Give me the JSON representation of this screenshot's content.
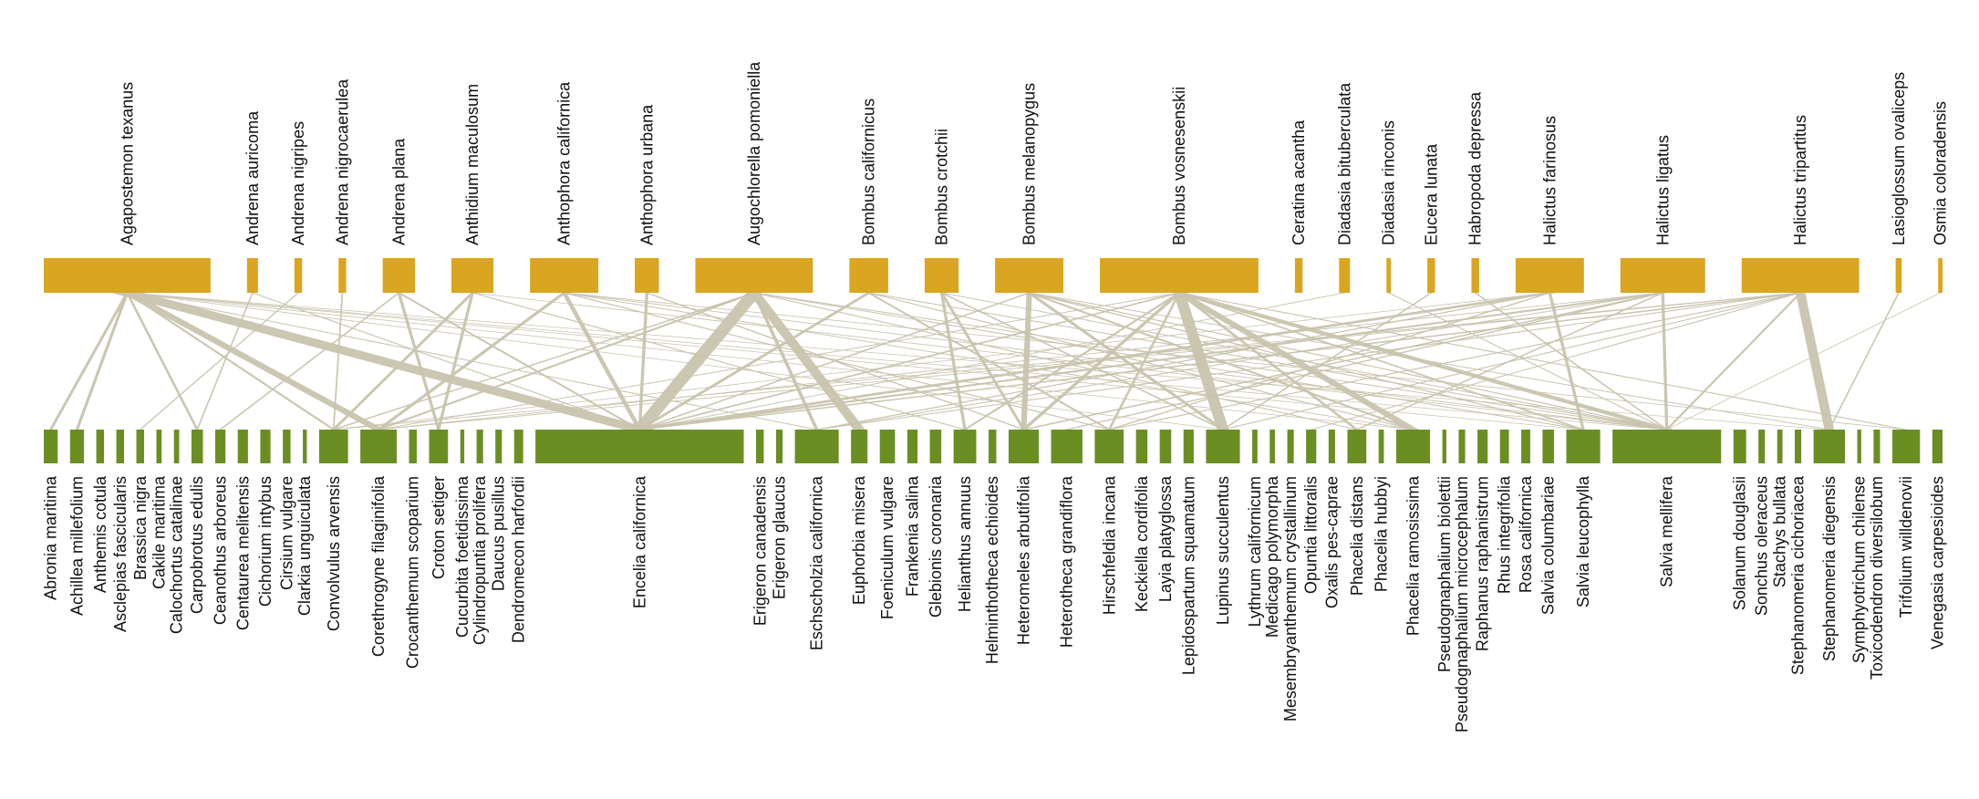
{
  "colors": {
    "pollinator": "#DAA520",
    "plant": "#6B8E23",
    "link": "#C9C4AE"
  },
  "pollinators": [
    {
      "name": "Agapostemon texanus",
      "w": 10
    },
    {
      "name": "Andrena auricoma",
      "w": 0.5
    },
    {
      "name": "Andrena nigripes",
      "w": 0.3
    },
    {
      "name": "Andrena nigrocaerulea",
      "w": 0.3
    },
    {
      "name": "Andrena plana",
      "w": 1.8
    },
    {
      "name": "Anthidium maculosum",
      "w": 2.4
    },
    {
      "name": "Anthophora californica",
      "w": 4
    },
    {
      "name": "Anthophora urbana",
      "w": 1.3
    },
    {
      "name": "Augochlorella pomoniella",
      "w": 7
    },
    {
      "name": "Bombus californicus",
      "w": 2.2
    },
    {
      "name": "Bombus crotchii",
      "w": 1.9
    },
    {
      "name": "Bombus melanopygus",
      "w": 4
    },
    {
      "name": "Bombus vosnesenskii",
      "w": 9.5
    },
    {
      "name": "Ceratina acantha",
      "w": 0.3
    },
    {
      "name": "Diadasia bituberculata",
      "w": 0.5
    },
    {
      "name": "Diadasia rinconis",
      "w": 0.1
    },
    {
      "name": "Eucera lunata",
      "w": 0.3
    },
    {
      "name": "Habropoda depressa",
      "w": 0.3
    },
    {
      "name": "Halictus farinosus",
      "w": 4
    },
    {
      "name": "Halictus ligatus",
      "w": 5
    },
    {
      "name": "Halictus tripartitus",
      "w": 7
    },
    {
      "name": "Lasioglossum ovaliceps",
      "w": 0.2
    },
    {
      "name": "Osmia coloradensis",
      "w": 0.1
    }
  ],
  "plants": [
    {
      "name": "Abronia maritima",
      "w": 0.9
    },
    {
      "name": "Achillea millefolium",
      "w": 0.9
    },
    {
      "name": "Anthemis cotula",
      "w": 0.4
    },
    {
      "name": "Asclepias fascicularis",
      "w": 0.4
    },
    {
      "name": "Brassica nigra",
      "w": 0.4
    },
    {
      "name": "Cakile maritima",
      "w": 0.2
    },
    {
      "name": "Calochortus catalinae",
      "w": 0.2
    },
    {
      "name": "Carpobrotus edulis",
      "w": 0.7
    },
    {
      "name": "Ceanothus arboreus",
      "w": 0.6
    },
    {
      "name": "Centaurea melitensis",
      "w": 0.6
    },
    {
      "name": "Cichorium intybus",
      "w": 0.6
    },
    {
      "name": "Cirsium vulgare",
      "w": 0.4
    },
    {
      "name": "Clarkia unguiculata",
      "w": 0.1
    },
    {
      "name": "Convolvulus arvensis",
      "w": 2.1
    },
    {
      "name": "Corethrogyne filaginifolia",
      "w": 2.7
    },
    {
      "name": "Crocanthemum scoparium",
      "w": 0.4
    },
    {
      "name": "Croton setiger",
      "w": 1.3
    },
    {
      "name": "Cucurbita foetidissima",
      "w": 0.1
    },
    {
      "name": "Cylindropuntia prolifera",
      "w": 0.3
    },
    {
      "name": "Daucus pusillus",
      "w": 0.3
    },
    {
      "name": "Dendromecon harfordii",
      "w": 0.5
    },
    {
      "name": "Encelia californica",
      "w": 16.5
    },
    {
      "name": "Erigeron canadensis",
      "w": 0.4
    },
    {
      "name": "Erigeron glaucus",
      "w": 0.3
    },
    {
      "name": "Eschscholzia californica",
      "w": 3.3
    },
    {
      "name": "Euphorbia misera",
      "w": 1.1
    },
    {
      "name": "Foeniculum vulgare",
      "w": 1
    },
    {
      "name": "Frankenia salina",
      "w": 0.6
    },
    {
      "name": "Glebionis coronaria",
      "w": 0.7
    },
    {
      "name": "Helianthus annuus",
      "w": 1.6
    },
    {
      "name": "Helminthotheca echioides",
      "w": 0.4
    },
    {
      "name": "Heteromeles arbutifolia",
      "w": 2.2
    },
    {
      "name": "Heterotheca grandiflora",
      "w": 2.3
    },
    {
      "name": "Hirschfeldia incana",
      "w": 2.1
    },
    {
      "name": "Keckiella cordifolia",
      "w": 0.7
    },
    {
      "name": "Layia platyglossa",
      "w": 0.7
    },
    {
      "name": "Lepidospartum squamatum",
      "w": 0.6
    },
    {
      "name": "Lupinus succulentus",
      "w": 2.5
    },
    {
      "name": "Lythrum californicum",
      "w": 0.2
    },
    {
      "name": "Medicago polymorpha",
      "w": 0.2
    },
    {
      "name": "Mesembryanthemum crystallinum",
      "w": 0.3
    },
    {
      "name": "Opuntia littoralis",
      "w": 0.6
    },
    {
      "name": "Oxalis pes-caprae",
      "w": 0.3
    },
    {
      "name": "Phacelia distans",
      "w": 1.3
    },
    {
      "name": "Phacelia hubbyi",
      "w": 0.2
    },
    {
      "name": "Phacelia ramosissima",
      "w": 2.5
    },
    {
      "name": "Pseudognaphalium biolettii",
      "w": 0.1
    },
    {
      "name": "Pseudognaphalium microcephalum",
      "w": 0.3
    },
    {
      "name": "Raphanus raphanistrum",
      "w": 0.6
    },
    {
      "name": "Rhus integrifolia",
      "w": 0.5
    },
    {
      "name": "Rosa californica",
      "w": 0.5
    },
    {
      "name": "Salvia columbariae",
      "w": 0.7
    },
    {
      "name": "Salvia leucophylla",
      "w": 2.5
    },
    {
      "name": "Salvia mellifera",
      "w": 8.5
    },
    {
      "name": "Solanum douglasii",
      "w": 0.8
    },
    {
      "name": "Sonchus oleraceus",
      "w": 0.3
    },
    {
      "name": "Stachys bullata",
      "w": 0.2
    },
    {
      "name": "Stephanomeria cichoriacea",
      "w": 0.3
    },
    {
      "name": "Stephanomeria diegensis",
      "w": 2.3
    },
    {
      "name": "Symphyotrichum chilense",
      "w": 0.1
    },
    {
      "name": "Toxicodendron diversilobum",
      "w": 0.3
    },
    {
      "name": "Trifolium willdenovii",
      "w": 2
    },
    {
      "name": "Venegasia carpesioides",
      "w": 0.6
    }
  ],
  "links": [
    {
      "p": 0,
      "q": 21,
      "w": 6
    },
    {
      "p": 0,
      "q": 14,
      "w": 2.2
    },
    {
      "p": 0,
      "q": 0,
      "w": 0.5
    },
    {
      "p": 0,
      "q": 1,
      "w": 0.5
    },
    {
      "p": 0,
      "q": 7,
      "w": 0.4
    },
    {
      "p": 0,
      "q": 13,
      "w": 0.5
    },
    {
      "p": 0,
      "q": 24,
      "w": 0.4
    },
    {
      "p": 0,
      "q": 37,
      "w": 0.3
    },
    {
      "p": 0,
      "q": 45,
      "w": 0.3
    },
    {
      "p": 0,
      "q": 52,
      "w": 0.3
    },
    {
      "p": 0,
      "q": 53,
      "w": 0.3
    },
    {
      "p": 0,
      "q": 58,
      "w": 0.3
    },
    {
      "p": 1,
      "q": 21,
      "w": 0.3
    },
    {
      "p": 1,
      "q": 7,
      "w": 0.2
    },
    {
      "p": 2,
      "q": 4,
      "w": 0.2
    },
    {
      "p": 3,
      "q": 13,
      "w": 0.2
    },
    {
      "p": 4,
      "q": 21,
      "w": 0.5
    },
    {
      "p": 4,
      "q": 16,
      "w": 0.5
    },
    {
      "p": 4,
      "q": 8,
      "w": 0.3
    },
    {
      "p": 5,
      "q": 13,
      "w": 0.6
    },
    {
      "p": 5,
      "q": 16,
      "w": 0.5
    },
    {
      "p": 5,
      "q": 29,
      "w": 0.4
    },
    {
      "p": 5,
      "q": 53,
      "w": 0.4
    },
    {
      "p": 6,
      "q": 21,
      "w": 0.8
    },
    {
      "p": 6,
      "q": 14,
      "w": 0.8
    },
    {
      "p": 6,
      "q": 33,
      "w": 0.4
    },
    {
      "p": 6,
      "q": 45,
      "w": 0.4
    },
    {
      "p": 6,
      "q": 53,
      "w": 0.5
    },
    {
      "p": 6,
      "q": 61,
      "w": 0.4
    },
    {
      "p": 7,
      "q": 21,
      "w": 0.5
    },
    {
      "p": 7,
      "q": 31,
      "w": 0.4
    },
    {
      "p": 8,
      "q": 21,
      "w": 3
    },
    {
      "p": 8,
      "q": 25,
      "w": 2.2
    },
    {
      "p": 8,
      "q": 14,
      "w": 0.8
    },
    {
      "p": 8,
      "q": 13,
      "w": 0.5
    },
    {
      "p": 8,
      "q": 24,
      "w": 0.6
    },
    {
      "p": 8,
      "q": 43,
      "w": 0.4
    },
    {
      "p": 8,
      "q": 52,
      "w": 0.5
    },
    {
      "p": 8,
      "q": 53,
      "w": 0.5
    },
    {
      "p": 9,
      "q": 21,
      "w": 0.8
    },
    {
      "p": 9,
      "q": 33,
      "w": 0.5
    },
    {
      "p": 9,
      "q": 45,
      "w": 0.4
    },
    {
      "p": 9,
      "q": 53,
      "w": 0.5
    },
    {
      "p": 10,
      "q": 29,
      "w": 0.5
    },
    {
      "p": 10,
      "q": 31,
      "w": 0.5
    },
    {
      "p": 10,
      "q": 37,
      "w": 0.4
    },
    {
      "p": 10,
      "q": 53,
      "w": 0.4
    },
    {
      "p": 11,
      "q": 31,
      "w": 1
    },
    {
      "p": 11,
      "q": 37,
      "w": 0.8
    },
    {
      "p": 11,
      "q": 45,
      "w": 0.8
    },
    {
      "p": 11,
      "q": 52,
      "w": 0.5
    },
    {
      "p": 11,
      "q": 53,
      "w": 0.5
    },
    {
      "p": 11,
      "q": 58,
      "w": 0.4
    },
    {
      "p": 11,
      "q": 21,
      "w": 0.5
    },
    {
      "p": 12,
      "q": 37,
      "w": 2.2
    },
    {
      "p": 12,
      "q": 45,
      "w": 2
    },
    {
      "p": 12,
      "q": 53,
      "w": 2.4
    },
    {
      "p": 12,
      "q": 31,
      "w": 0.8
    },
    {
      "p": 12,
      "q": 43,
      "w": 0.6
    },
    {
      "p": 12,
      "q": 29,
      "w": 0.5
    },
    {
      "p": 12,
      "q": 61,
      "w": 0.5
    },
    {
      "p": 12,
      "q": 21,
      "w": 0.8
    },
    {
      "p": 12,
      "q": 52,
      "w": 0.6
    },
    {
      "p": 12,
      "q": 14,
      "w": 0.4
    },
    {
      "p": 12,
      "q": 33,
      "w": 0.4
    },
    {
      "p": 14,
      "q": 21,
      "w": 0.3
    },
    {
      "p": 15,
      "q": 53,
      "w": 0.2
    },
    {
      "p": 16,
      "q": 37,
      "w": 0.3
    },
    {
      "p": 17,
      "q": 53,
      "w": 0.3
    },
    {
      "p": 18,
      "q": 21,
      "w": 2.6
    },
    {
      "p": 18,
      "q": 24,
      "w": 0.6
    },
    {
      "p": 18,
      "q": 52,
      "w": 0.5
    },
    {
      "p": 18,
      "q": 33,
      "w": 0.5
    },
    {
      "p": 18,
      "q": 13,
      "w": 0.3
    },
    {
      "p": 19,
      "q": 21,
      "w": 2
    },
    {
      "p": 19,
      "q": 31,
      "w": 0.8
    },
    {
      "p": 19,
      "q": 32,
      "w": 0.6
    },
    {
      "p": 19,
      "q": 24,
      "w": 0.5
    },
    {
      "p": 19,
      "q": 53,
      "w": 0.5
    },
    {
      "p": 19,
      "q": 14,
      "w": 0.5
    },
    {
      "p": 19,
      "q": 43,
      "w": 0.4
    },
    {
      "p": 20,
      "q": 58,
      "w": 1.8
    },
    {
      "p": 20,
      "q": 21,
      "w": 1.4
    },
    {
      "p": 20,
      "q": 14,
      "w": 0.6
    },
    {
      "p": 20,
      "q": 24,
      "w": 0.6
    },
    {
      "p": 20,
      "q": 33,
      "w": 0.5
    },
    {
      "p": 20,
      "q": 13,
      "w": 0.5
    },
    {
      "p": 20,
      "q": 37,
      "w": 0.4
    },
    {
      "p": 20,
      "q": 53,
      "w": 0.4
    },
    {
      "p": 20,
      "q": 41,
      "w": 0.3
    },
    {
      "p": 21,
      "q": 58,
      "w": 0.2
    },
    {
      "p": 22,
      "q": 53,
      "w": 0.1
    }
  ]
}
